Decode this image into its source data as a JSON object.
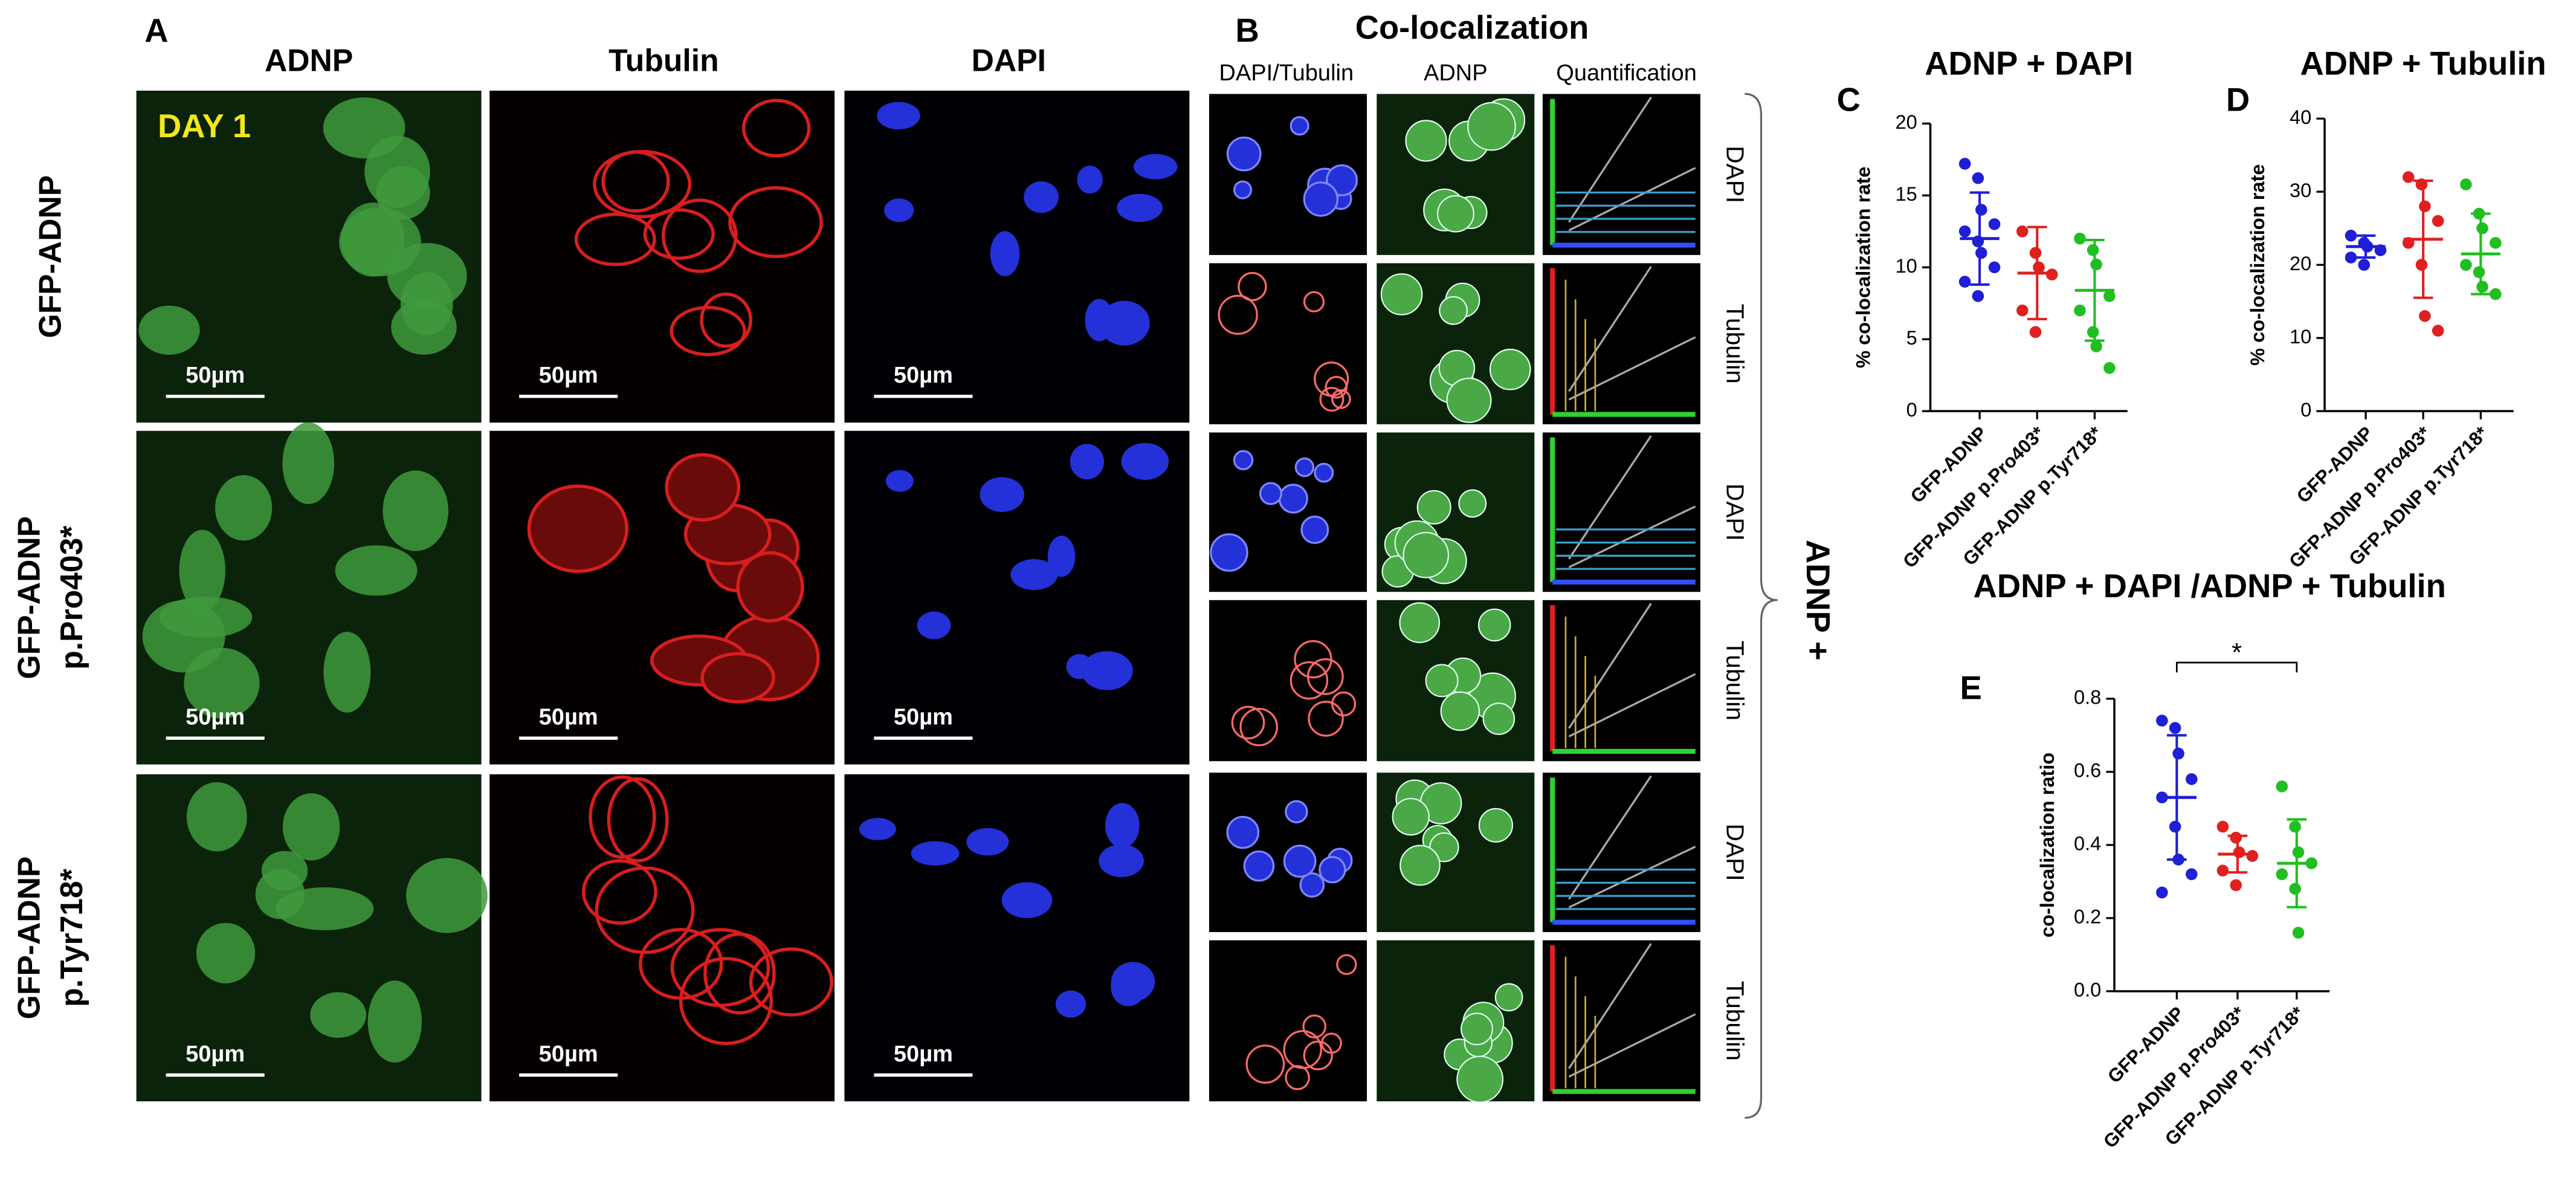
{
  "panel_a": {
    "label": "A",
    "columns": [
      "ADNP",
      "Tubulin",
      "DAPI"
    ],
    "day": "DAY 1",
    "rows": [
      [
        "GFP-ADNP"
      ],
      [
        "GFP-ADNP",
        "p.Pro403*"
      ],
      [
        "GFP-ADNP",
        "p.Tyr718*"
      ]
    ],
    "scale_bars": [
      "50µm",
      "50µm",
      "50µm",
      "50µm",
      "50µm",
      "50µm",
      "50µm",
      "50µm",
      "50µm"
    ]
  },
  "panel_b": {
    "label": "B",
    "title": "Co-localization",
    "columns": [
      "DAPI/Tubulin",
      "ADNP",
      "Quantification"
    ],
    "rows": [
      "DAPI",
      "Tubulin",
      "DAPI",
      "Tubulin",
      "DAPI",
      "Tubulin"
    ],
    "group_label": "ADNP +"
  },
  "chart_data": [
    {
      "type": "dotplot",
      "panel": "C",
      "title": "ADNP + DAPI",
      "ylabel": "% co-localization rate",
      "categories": [
        "GFP-ADNP",
        "GFP-ADNP p.Pro403*",
        "GFP-ADNP p.Tyr718*"
      ],
      "ylim": [
        0,
        20
      ],
      "yticks": [
        0,
        5,
        10,
        15,
        20
      ],
      "groups": [
        {
          "color": "#1f1fd6",
          "values": [
            17.2,
            16.2,
            14.0,
            13.0,
            12.5,
            11.8,
            11.0,
            10.0,
            9.0,
            8.0
          ],
          "mean": 12.0,
          "sd": 3.2
        },
        {
          "color": "#e0201f",
          "values": [
            12.5,
            11.0,
            10.0,
            9.5,
            7.0,
            5.5
          ],
          "mean": 9.6,
          "sd": 3.2
        },
        {
          "color": "#1fbf1f",
          "values": [
            12.0,
            11.2,
            10.2,
            8.0,
            7.0,
            5.5,
            4.5,
            3.0
          ],
          "mean": 8.4,
          "sd": 3.5
        }
      ]
    },
    {
      "type": "dotplot",
      "panel": "D",
      "title": "ADNP + Tubulin",
      "ylabel": "% co-localization rate",
      "categories": [
        "GFP-ADNP",
        "GFP-ADNP p.Pro403*",
        "GFP-ADNP p.Tyr718*"
      ],
      "ylim": [
        0,
        40
      ],
      "yticks": [
        0,
        10,
        20,
        30,
        40
      ],
      "groups": [
        {
          "color": "#1f1fd6",
          "values": [
            24.0,
            23.0,
            22.5,
            22.0,
            21.0,
            20.0
          ],
          "mean": 22.5,
          "sd": 1.5
        },
        {
          "color": "#e0201f",
          "values": [
            32.0,
            31.0,
            28.0,
            26.0,
            23.0,
            20.0,
            13.0,
            11.0
          ],
          "mean": 23.5,
          "sd": 8.0
        },
        {
          "color": "#1fbf1f",
          "values": [
            31.0,
            27.0,
            25.0,
            23.0,
            20.0,
            19.0,
            17.0,
            16.0
          ],
          "mean": 21.5,
          "sd": 5.5
        }
      ]
    },
    {
      "type": "dotplot",
      "panel": "E",
      "title": "ADNP + DAPI /ADNP + Tubulin",
      "ylabel": "co-localization ratio",
      "categories": [
        "GFP-ADNP",
        "GFP-ADNP p.Pro403*",
        "GFP-ADNP p.Tyr718*"
      ],
      "ylim": [
        0,
        0.8
      ],
      "yticks": [
        {
          "value": 0,
          "label": "0.0"
        },
        0.2,
        0.4,
        0.6,
        0.8
      ],
      "groups": [
        {
          "color": "#1f1fd6",
          "values": [
            0.74,
            0.72,
            0.65,
            0.58,
            0.53,
            0.45,
            0.36,
            0.32,
            0.27
          ],
          "mean": 0.53,
          "sd": 0.17
        },
        {
          "color": "#e0201f",
          "values": [
            0.45,
            0.42,
            0.38,
            0.37,
            0.33,
            0.29
          ],
          "mean": 0.375,
          "sd": 0.05
        },
        {
          "color": "#1fbf1f",
          "values": [
            0.56,
            0.45,
            0.38,
            0.35,
            0.32,
            0.28,
            0.16
          ],
          "mean": 0.35,
          "sd": 0.12
        }
      ],
      "significance": {
        "label": "*",
        "between": [
          0,
          2
        ]
      }
    }
  ]
}
